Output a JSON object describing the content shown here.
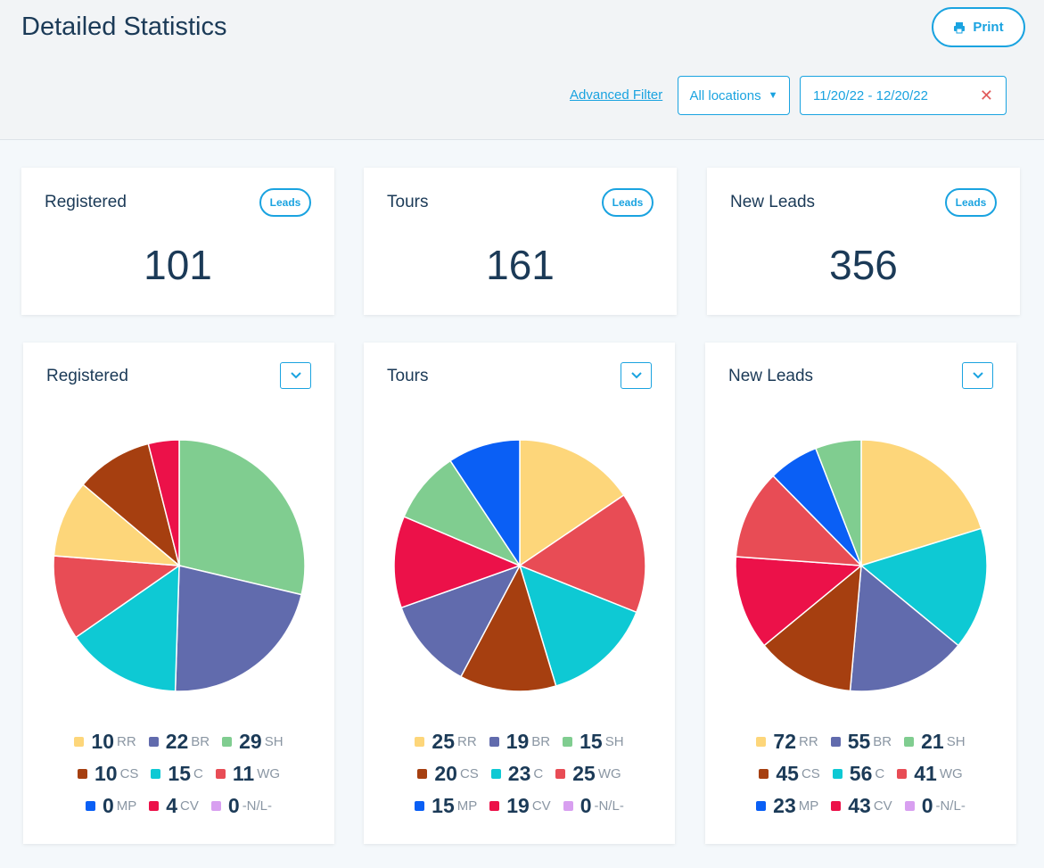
{
  "header": {
    "title": "Detailed Statistics",
    "print_label": "Print",
    "advanced_filter": "Advanced Filter",
    "location_select": "All locations",
    "date_range": "11/20/22 - 12/20/22"
  },
  "stats": [
    {
      "label": "Registered",
      "badge": "Leads",
      "value": "101"
    },
    {
      "label": "Tours",
      "badge": "Leads",
      "value": "161"
    },
    {
      "label": "New Leads",
      "badge": "Leads",
      "value": "356"
    }
  ],
  "colors": {
    "accent": "#1aa3e0",
    "RR": "#fdd67a",
    "BR": "#616bad",
    "SH": "#80cd90",
    "CS": "#a63f10",
    "C": "#0ec9d4",
    "WG": "#e84c55",
    "MP": "#0a5ff5",
    "CV": "#ec1149",
    "-N/L-": "#d89ff0"
  },
  "chart_data": [
    {
      "type": "pie",
      "title": "Registered",
      "slices": [
        {
          "label": "SH",
          "value": 29
        },
        {
          "label": "BR",
          "value": 22
        },
        {
          "label": "C",
          "value": 15
        },
        {
          "label": "WG",
          "value": 11
        },
        {
          "label": "RR",
          "value": 10
        },
        {
          "label": "CS",
          "value": 10
        },
        {
          "label": "CV",
          "value": 4
        }
      ],
      "legend": [
        {
          "label": "RR",
          "value": 10
        },
        {
          "label": "BR",
          "value": 22
        },
        {
          "label": "SH",
          "value": 29
        },
        {
          "label": "CS",
          "value": 10
        },
        {
          "label": "C",
          "value": 15
        },
        {
          "label": "WG",
          "value": 11
        },
        {
          "label": "MP",
          "value": 0
        },
        {
          "label": "CV",
          "value": 4
        },
        {
          "label": "-N/L-",
          "value": 0
        }
      ]
    },
    {
      "type": "pie",
      "title": "Tours",
      "slices": [
        {
          "label": "RR",
          "value": 25
        },
        {
          "label": "WG",
          "value": 25
        },
        {
          "label": "C",
          "value": 23
        },
        {
          "label": "CS",
          "value": 20
        },
        {
          "label": "BR",
          "value": 19
        },
        {
          "label": "CV",
          "value": 19
        },
        {
          "label": "SH",
          "value": 15
        },
        {
          "label": "MP",
          "value": 15
        }
      ],
      "legend": [
        {
          "label": "RR",
          "value": 25
        },
        {
          "label": "BR",
          "value": 19
        },
        {
          "label": "SH",
          "value": 15
        },
        {
          "label": "CS",
          "value": 20
        },
        {
          "label": "C",
          "value": 23
        },
        {
          "label": "WG",
          "value": 25
        },
        {
          "label": "MP",
          "value": 15
        },
        {
          "label": "CV",
          "value": 19
        },
        {
          "label": "-N/L-",
          "value": 0
        }
      ]
    },
    {
      "type": "pie",
      "title": "New Leads",
      "slices": [
        {
          "label": "RR",
          "value": 72
        },
        {
          "label": "C",
          "value": 56
        },
        {
          "label": "BR",
          "value": 55
        },
        {
          "label": "CS",
          "value": 45
        },
        {
          "label": "CV",
          "value": 43
        },
        {
          "label": "WG",
          "value": 41
        },
        {
          "label": "MP",
          "value": 23
        },
        {
          "label": "SH",
          "value": 21
        }
      ],
      "legend": [
        {
          "label": "RR",
          "value": 72
        },
        {
          "label": "BR",
          "value": 55
        },
        {
          "label": "SH",
          "value": 21
        },
        {
          "label": "CS",
          "value": 45
        },
        {
          "label": "C",
          "value": 56
        },
        {
          "label": "WG",
          "value": 41
        },
        {
          "label": "MP",
          "value": 23
        },
        {
          "label": "CV",
          "value": 43
        },
        {
          "label": "-N/L-",
          "value": 0
        }
      ]
    }
  ]
}
